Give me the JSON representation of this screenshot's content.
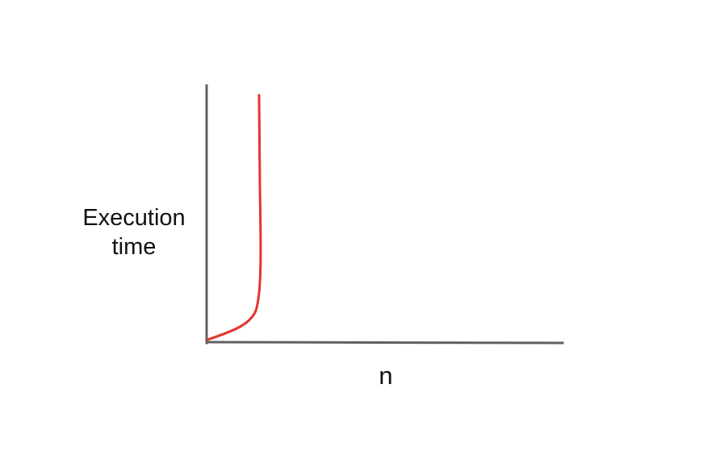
{
  "diagram": {
    "y_axis_label_line1": "Execution",
    "y_axis_label_line2": "time",
    "x_axis_label": "n",
    "curve_color": "#e3342f",
    "axis_color": "#606060"
  }
}
